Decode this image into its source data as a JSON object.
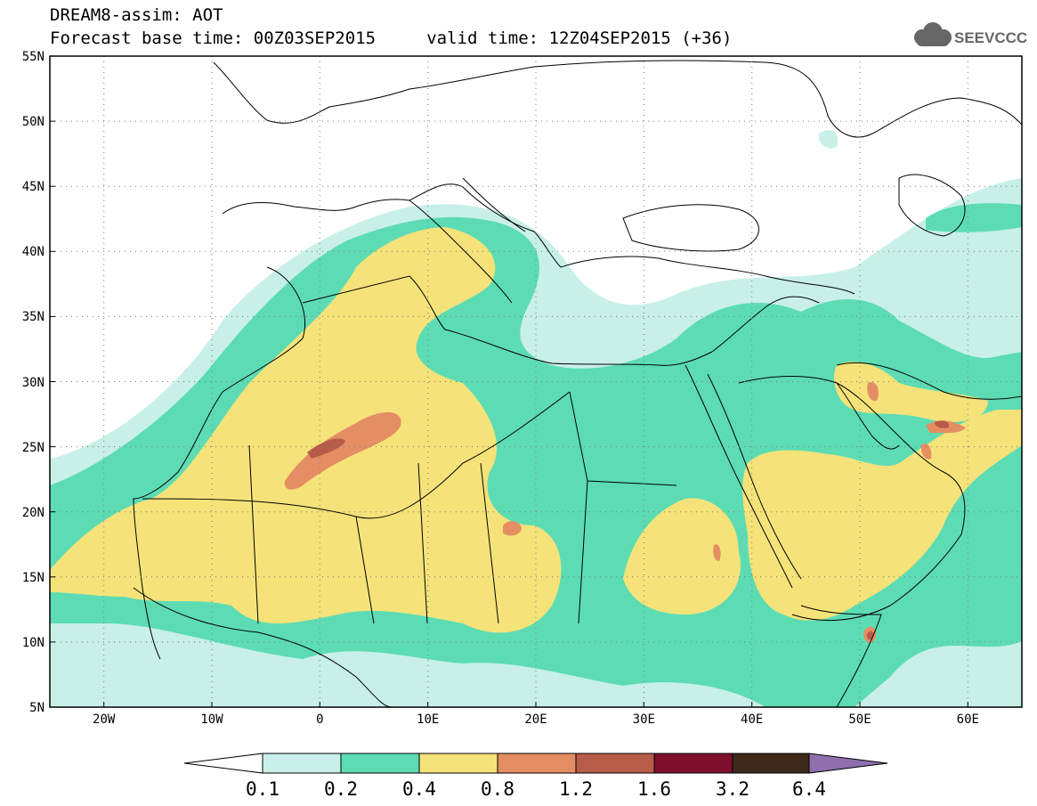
{
  "header": {
    "line1": "DREAM8-assim: AOT",
    "line2": "Forecast base time: 00Z03SEP2015     valid time: 12Z04SEP2015 (+36)",
    "logo_text": "SEEVCCC"
  },
  "map": {
    "lon_range": [
      -25,
      65
    ],
    "lat_range": [
      5,
      55
    ],
    "lat_ticks": [
      "5N",
      "10N",
      "15N",
      "20N",
      "25N",
      "30N",
      "35N",
      "40N",
      "45N",
      "50N",
      "55N"
    ],
    "lon_ticks": [
      "20W",
      "10W",
      "0",
      "10E",
      "20E",
      "30E",
      "40E",
      "50E",
      "60E"
    ],
    "grid": "dotted"
  },
  "colorbar": {
    "labels": [
      "0.1",
      "0.2",
      "0.4",
      "0.8",
      "1.2",
      "1.6",
      "3.2",
      "6.4"
    ],
    "colors": [
      "#ffffff",
      "#c8f0e8",
      "#5ddcb4",
      "#f5e37a",
      "#e58e64",
      "#b85c4a",
      "#7e0f2e",
      "#3d2a1a",
      "#8f6fae"
    ]
  },
  "colors": {
    "c1": "#c8f0e8",
    "c2": "#5ddcb4",
    "c3": "#f5e37a",
    "c4": "#e58e64",
    "c5": "#b85c4a",
    "c6": "#7e0f2e"
  }
}
